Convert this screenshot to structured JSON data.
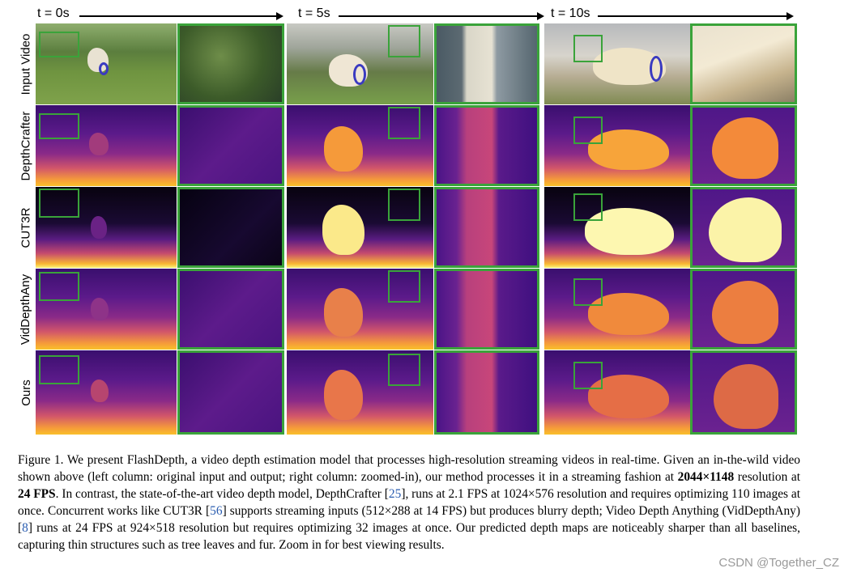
{
  "timeline": [
    "t = 0s",
    "t = 5s",
    "t = 10s"
  ],
  "rows": [
    "Input Video",
    "DepthCrafter",
    "CUT3R",
    "VidDepthAny",
    "Ours"
  ],
  "caption": {
    "p1": "Figure 1. We present FlashDepth, a video depth estimation model that processes high-resolution streaming videos in real-time. Given an in-the-wild video shown above (left column: original input and output; right column: zoomed-in), our method processes it in a streaming fashion at ",
    "b1": "2044×1148",
    "p2": " resolution at ",
    "b2": "24 FPS",
    "p3": ". In contrast, the state-of-the-art video depth model, DepthCrafter [",
    "r1": "25",
    "p4": "], runs at 2.1 FPS at 1024×576 resolution and requires optimizing 110 images at once. Concurrent works like CUT3R [",
    "r2": "56",
    "p5": "] supports streaming inputs (512×288 at 14 FPS) but produces blurry depth; Video Depth Anything (VidDepthAny) [",
    "r3": "8",
    "p6": "] runs at 24 FPS at 924×518 resolution but requires optimizing 32 images at once. Our predicted depth maps are noticeably sharper than all baselines, capturing thin structures such as tree leaves and fur. Zoom in for best viewing results."
  },
  "watermark": "CSDN @Together_CZ",
  "colors": {
    "highlight_box": "#3aa33a",
    "ref_link": "#2a5db0"
  }
}
